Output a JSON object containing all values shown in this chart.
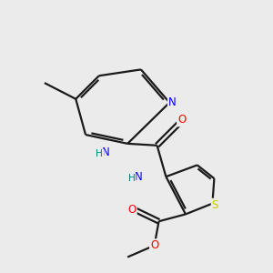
{
  "bg_color": "#ebebeb",
  "bond_color": "#1a1a1a",
  "atom_colors": {
    "N": "#0000ff",
    "O": "#ff0000",
    "S": "#c8c800",
    "C": "#1a1a1a",
    "NH_teal": "#008080"
  },
  "figsize": [
    3.0,
    3.0
  ],
  "dpi": 100,
  "lw": 1.6,
  "fontsize": 8.5
}
